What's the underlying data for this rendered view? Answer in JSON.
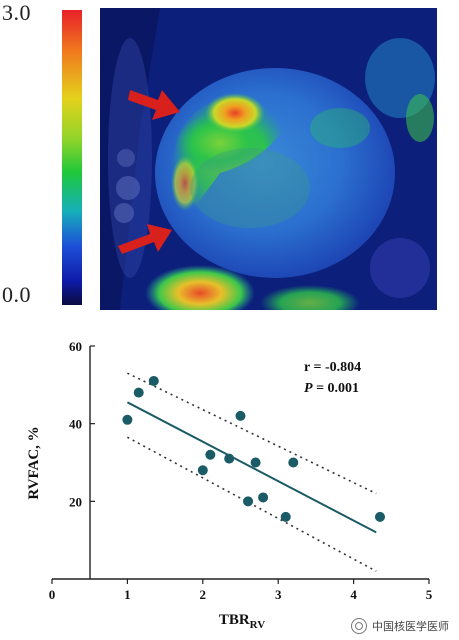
{
  "colorbar": {
    "max_label": "3.0",
    "min_label": "0.0"
  },
  "pet_image": {
    "description_icon": "cardiac-pet-ct-image",
    "arrow_color": "#d8201c"
  },
  "chart_data": {
    "type": "scatter",
    "xlabel_main": "TBR",
    "xlabel_sub": "RV",
    "ylabel": "RVFAC, %",
    "xlim": [
      0,
      5
    ],
    "ylim": [
      0,
      60
    ],
    "xticks": [
      "0",
      "1",
      "2",
      "3",
      "4",
      "5"
    ],
    "yticks": [
      "20",
      "40",
      "60"
    ],
    "ytick_values": [
      20,
      40,
      60
    ],
    "points": [
      {
        "x": 1.0,
        "y": 41
      },
      {
        "x": 1.15,
        "y": 48
      },
      {
        "x": 1.35,
        "y": 51
      },
      {
        "x": 2.0,
        "y": 28
      },
      {
        "x": 2.1,
        "y": 32
      },
      {
        "x": 2.35,
        "y": 31
      },
      {
        "x": 2.5,
        "y": 42
      },
      {
        "x": 2.6,
        "y": 20
      },
      {
        "x": 2.7,
        "y": 30
      },
      {
        "x": 2.8,
        "y": 21
      },
      {
        "x": 3.1,
        "y": 16
      },
      {
        "x": 3.2,
        "y": 30
      },
      {
        "x": 4.35,
        "y": 16
      }
    ],
    "regression": {
      "x": [
        1.0,
        4.3
      ],
      "y": [
        45.5,
        12
      ]
    },
    "ci_upper": {
      "x": [
        1.0,
        4.3
      ],
      "y": [
        53,
        22
      ]
    },
    "ci_lower": {
      "x": [
        1.0,
        4.3
      ],
      "y": [
        36.5,
        2
      ]
    },
    "stats": {
      "r_text": "r = -0.804",
      "p_label": "P",
      "p_text": " = 0.001"
    },
    "colors": {
      "point": "#1a5b66",
      "line": "#1a5b66",
      "ci": "#333333"
    }
  },
  "watermark": {
    "text": "中国核医学医师"
  }
}
